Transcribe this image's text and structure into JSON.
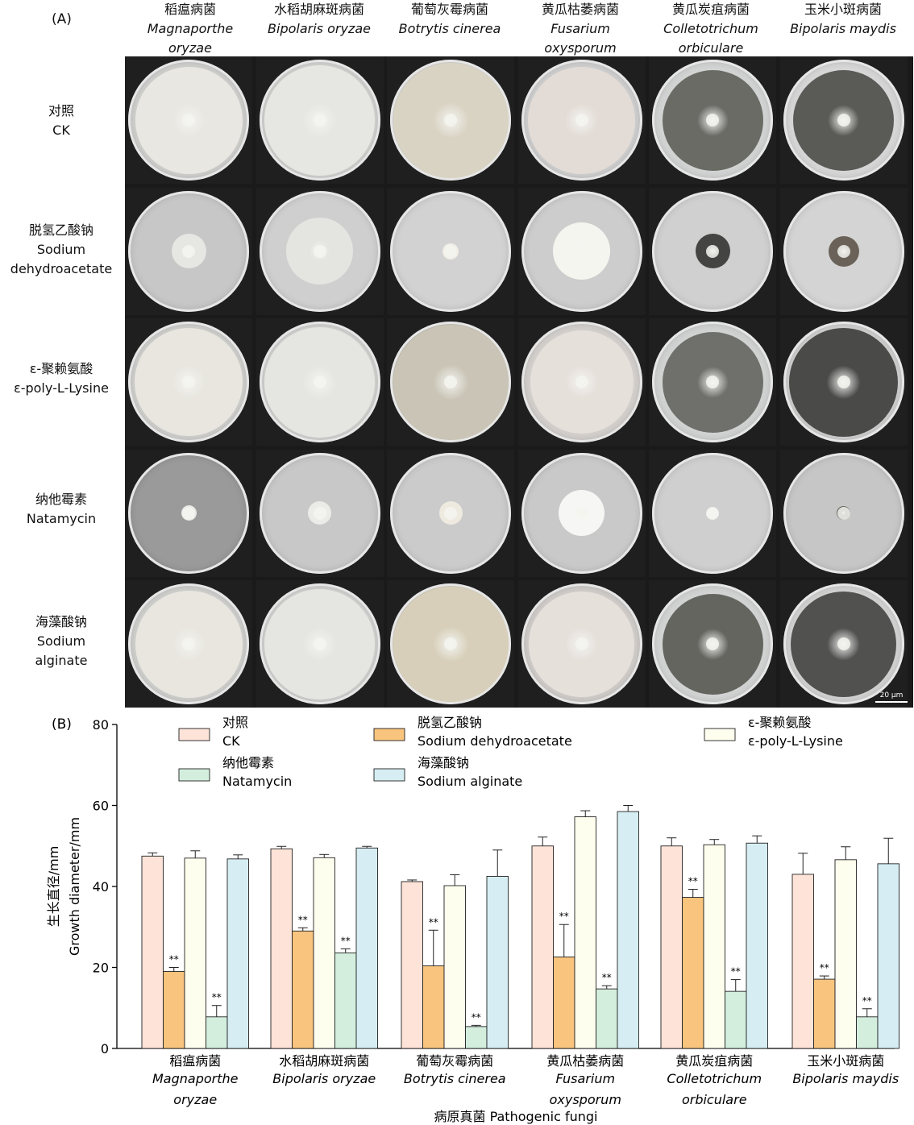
{
  "panels": {
    "a": "(A)",
    "b": "(B)"
  },
  "fungi": [
    {
      "cn": "稻瘟病菌",
      "latin1": "Magnaporthe",
      "latin2": "oryzae"
    },
    {
      "cn": "水稻胡麻斑病菌",
      "latin1": "Bipolaris oryzae",
      "latin2": ""
    },
    {
      "cn": "葡萄灰霉病菌",
      "latin1": "Botrytis cinerea",
      "latin2": ""
    },
    {
      "cn": "黄瓜枯萎病菌",
      "latin1": "Fusarium",
      "latin2": "oxysporum"
    },
    {
      "cn": "黄瓜炭疽病菌",
      "latin1": "Colletotrichum",
      "latin2": "orbiculare"
    },
    {
      "cn": "玉米小斑病菌",
      "latin1": "Bipolaris maydis",
      "latin2": ""
    }
  ],
  "treatments": [
    {
      "line1": "对照",
      "line2": "CK",
      "line3": ""
    },
    {
      "line1": "脱氢乙酸钠",
      "line2": "Sodium",
      "line3": "dehydroacetate"
    },
    {
      "line1": "ε-聚赖氨酸",
      "line2": "ε-poly-L-Lysine",
      "line3": ""
    },
    {
      "line1": "纳他霉素",
      "line2": "Natamycin",
      "line3": ""
    },
    {
      "line1": "海藻酸钠",
      "line2": "Sodium",
      "line3": "alginate"
    }
  ],
  "scale_bar": "20 μm",
  "chart_data": {
    "type": "bar",
    "ylabel_cn": "生长直径/mm",
    "ylabel_en": "Growth diameter/mm",
    "xlabel": "病原真菌 Pathogenic fungi",
    "ylim": [
      0,
      80
    ],
    "yticks": [
      0,
      20,
      40,
      60,
      80
    ],
    "categories": [
      "稻瘟病菌",
      "水稻胡麻斑病菌",
      "葡萄灰霉病菌",
      "黄瓜枯萎病菌",
      "黄瓜炭疽病菌",
      "玉米小斑病菌"
    ],
    "series": [
      {
        "name": "对照 CK",
        "name_cn": "对照",
        "name_en": "CK",
        "color": "#fde3d8",
        "values": [
          47.5,
          49.3,
          41.2,
          50.0,
          50.0,
          43.0
        ],
        "errors": [
          0.8,
          0.6,
          0.4,
          2.2,
          2.0,
          5.2
        ],
        "sig": [
          "",
          "",
          "",
          "",
          "",
          ""
        ]
      },
      {
        "name": "脱氢乙酸钠 Sodium dehydroacetate",
        "name_cn": "脱氢乙酸钠",
        "name_en": "Sodium dehydroacetate",
        "color": "#f8c47e",
        "values": [
          19.0,
          29.0,
          20.4,
          22.6,
          37.3,
          17.1
        ],
        "errors": [
          1.0,
          0.8,
          8.8,
          8.0,
          2.0,
          0.8
        ],
        "sig": [
          "**",
          "**",
          "**",
          "**",
          "**",
          "**"
        ]
      },
      {
        "name": "ε-聚赖氨酸 ε-poly-L-Lysine",
        "name_cn": "ε-聚赖氨酸",
        "name_en": "ε-poly-L-Lysine",
        "color": "#fefeee",
        "values": [
          47.0,
          47.1,
          40.2,
          57.2,
          50.3,
          46.6
        ],
        "errors": [
          1.8,
          0.8,
          2.7,
          1.5,
          1.3,
          3.2
        ],
        "sig": [
          "",
          "",
          "",
          "",
          "",
          ""
        ]
      },
      {
        "name": "纳他霉素 Natamycin",
        "name_cn": "纳他霉素",
        "name_en": "Natamycin",
        "color": "#d3eedd",
        "values": [
          7.8,
          23.6,
          5.4,
          14.7,
          14.1,
          7.8
        ],
        "errors": [
          2.8,
          1.0,
          0.3,
          0.8,
          2.9,
          2.0
        ],
        "sig": [
          "**",
          "**",
          "**",
          "**",
          "**",
          "**"
        ]
      },
      {
        "name": "海藻酸钠 Sodium alginate",
        "name_cn": "海藻酸钠",
        "name_en": "Sodium alginate",
        "color": "#d6eef3",
        "values": [
          46.8,
          49.5,
          42.5,
          58.5,
          50.7,
          45.6
        ],
        "errors": [
          1.0,
          0.4,
          6.5,
          1.5,
          1.8,
          6.3
        ],
        "sig": [
          "",
          "",
          "",
          "",
          "",
          ""
        ]
      }
    ]
  },
  "dish_colors": {
    "rows": [
      {
        "agar": [
          "#cfcfcd",
          "#d2d2d0",
          "#d6d5d0",
          "#cfcfcf",
          "#d2d3d3",
          "#d6d6d6"
        ],
        "colony": [
          "#e9e7e1",
          "#e6e6e3",
          "#d9d3c3",
          "#e3dcd6",
          "#6b6b66",
          "#5a5a57"
        ],
        "size": [
          0.93,
          0.96,
          1.0,
          0.93,
          0.88,
          0.88
        ]
      },
      {
        "agar": [
          "#c7c7c7",
          "#cfcfcf",
          "#d2d2d2",
          "#cdcdcd",
          "#d0d0d0",
          "#d4d4d4"
        ],
        "colony": [
          "#e6e6e3",
          "#e4e4e0",
          "#f0eee7",
          "#f5f5f0",
          "#444442",
          "#6a6258"
        ],
        "size": [
          0.3,
          0.58,
          0.14,
          0.5,
          0.3,
          0.27
        ]
      },
      {
        "agar": [
          "#cfcfcd",
          "#d2d2d0",
          "#c8c4b8",
          "#d3cfcc",
          "#d1d2d2",
          "#cfcfcf"
        ],
        "colony": [
          "#e8e6df",
          "#e5e5e2",
          "#c9c4b5",
          "#e6e0db",
          "#6f6f6b",
          "#4a4a48"
        ],
        "size": [
          0.94,
          0.96,
          1.0,
          0.9,
          0.88,
          0.95
        ]
      },
      {
        "agar": [
          "#9a9a9a",
          "#c8c8c8",
          "#cbcbcb",
          "#c9c9c9",
          "#cfcfcf",
          "#c6c6c6"
        ],
        "colony": [
          "#e9e9e6",
          "#ebebe8",
          "#eeeae0",
          "#f6f6f4",
          "#eeeeee",
          "#6a6a66"
        ],
        "size": [
          0.13,
          0.2,
          0.2,
          0.4,
          0.1,
          0.12
        ]
      },
      {
        "agar": [
          "#cfcfcd",
          "#d2d2d0",
          "#d6d1c0",
          "#d0ccc9",
          "#d2d3d3",
          "#d2d2d2"
        ],
        "colony": [
          "#e8e6df",
          "#e5e5e2",
          "#d7cfb9",
          "#e6e0db",
          "#656560",
          "#515150"
        ],
        "size": [
          0.93,
          0.96,
          1.0,
          0.92,
          0.88,
          0.92
        ]
      }
    ]
  }
}
